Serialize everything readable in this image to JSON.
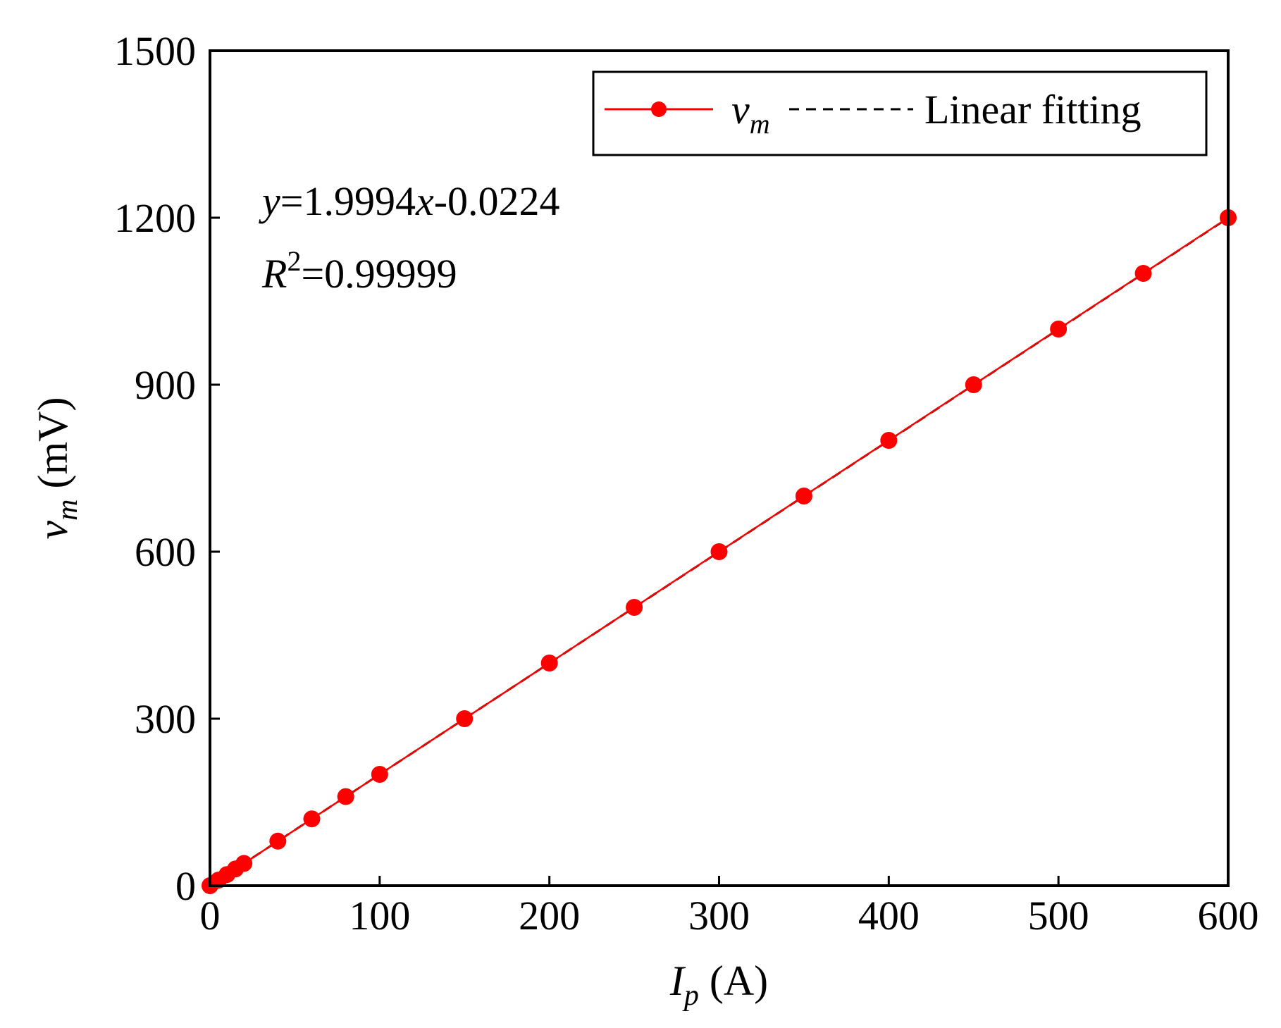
{
  "chart_data": {
    "type": "line",
    "title": "",
    "xlabel": {
      "var": "I",
      "sub": "p",
      "unit": " (A)"
    },
    "ylabel": {
      "var": "v",
      "sub": "m",
      "unit": " (mV)"
    },
    "xlim": [
      0,
      600
    ],
    "ylim": [
      0,
      1500
    ],
    "xticks": [
      0,
      100,
      200,
      300,
      400,
      500,
      600
    ],
    "yticks": [
      0,
      300,
      600,
      900,
      1200,
      1500
    ],
    "grid": false,
    "legend_position": "top-right",
    "series": [
      {
        "name": "v_m",
        "legend": {
          "var": "v",
          "sub": "m"
        },
        "color": "#ff0000",
        "marker": "circle",
        "x": [
          0,
          5,
          10,
          15,
          20,
          40,
          60,
          80,
          100,
          150,
          200,
          250,
          300,
          350,
          400,
          450,
          500,
          550,
          600
        ],
        "y": [
          0,
          10,
          20,
          30,
          40,
          80,
          120,
          160,
          200,
          300,
          400,
          500,
          600,
          700,
          800,
          900,
          1000,
          1100,
          1200
        ]
      },
      {
        "name": "Linear fitting",
        "legend": {
          "text": "Linear fitting"
        },
        "color": "#000000",
        "style": "dashed",
        "slope": 1.9994,
        "intercept": -0.0224,
        "x": [
          0,
          600
        ]
      }
    ],
    "annotation": {
      "eq_y": "y",
      "eq_mid": "=1.9994",
      "eq_x": "x",
      "eq_end": "-0.0224",
      "r_var": "R",
      "r_sup": "2",
      "r_val": "=0.99999"
    }
  }
}
